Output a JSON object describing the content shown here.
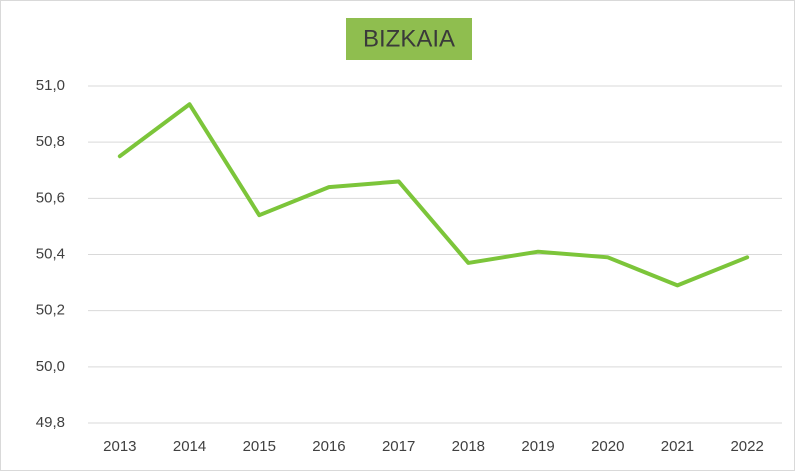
{
  "chart_data": {
    "type": "line",
    "title": "BIZKAIA",
    "categories": [
      "2013",
      "2014",
      "2015",
      "2016",
      "2017",
      "2018",
      "2019",
      "2020",
      "2021",
      "2022"
    ],
    "series": [
      {
        "name": "BIZKAIA",
        "color": "#7cc53a",
        "values": [
          50.75,
          50.935,
          50.54,
          50.64,
          50.66,
          50.37,
          50.41,
          50.39,
          50.29,
          50.39
        ]
      }
    ],
    "ylim": [
      49.8,
      51.0
    ],
    "yticks": [
      {
        "value": 49.8,
        "label": "49,8"
      },
      {
        "value": 50.0,
        "label": "50,0"
      },
      {
        "value": 50.2,
        "label": "50,2"
      },
      {
        "value": 50.4,
        "label": "50,4"
      },
      {
        "value": 50.6,
        "label": "50,6"
      },
      {
        "value": 50.8,
        "label": "50,8"
      },
      {
        "value": 51.0,
        "label": "51,0"
      }
    ],
    "grid": true
  }
}
